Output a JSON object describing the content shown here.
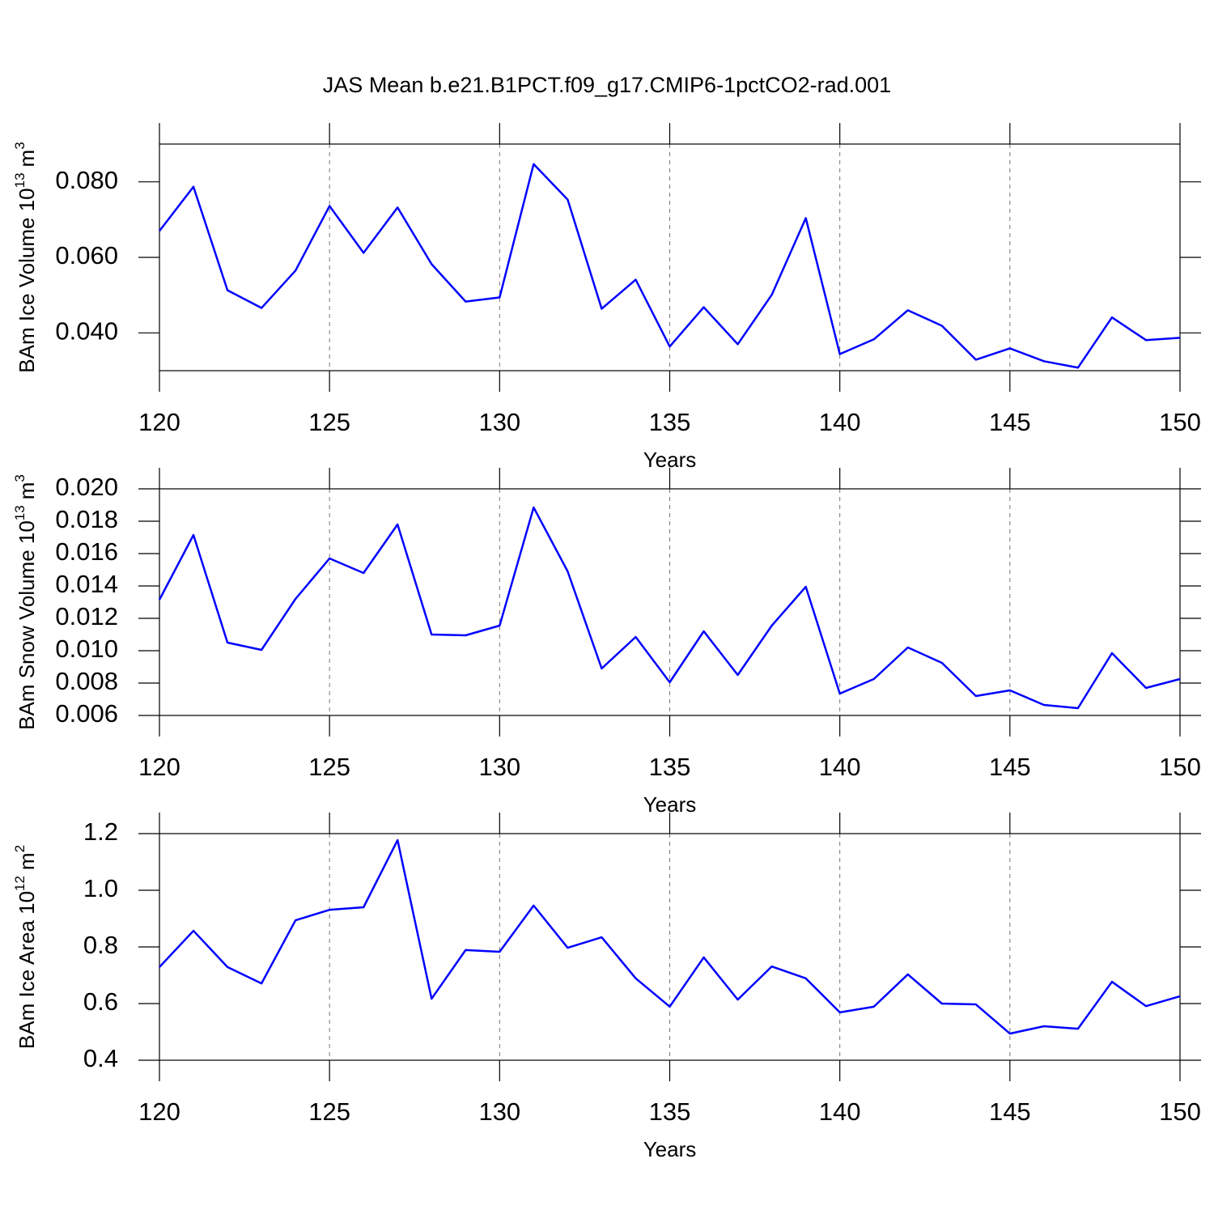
{
  "title": "JAS Mean b.e21.B1PCT.f09_g17.CMIP6-1pctCO2-rad.001",
  "chart_data": [
    {
      "type": "line",
      "xlabel": "Years",
      "ylabel": [
        "BAm Ice Volume 10",
        "13",
        "m",
        "3"
      ],
      "color": "#0000ff",
      "grid": true,
      "x": [
        120,
        121,
        122,
        123,
        124,
        125,
        126,
        127,
        128,
        129,
        130,
        131,
        132,
        133,
        134,
        135,
        136,
        137,
        138,
        139,
        140,
        141,
        142,
        143,
        144,
        145,
        146,
        147,
        148,
        149,
        150
      ],
      "values": [
        0.067,
        0.0787,
        0.0513,
        0.0466,
        0.0565,
        0.0736,
        0.0612,
        0.0732,
        0.0582,
        0.0483,
        0.0494,
        0.0847,
        0.0753,
        0.0464,
        0.0541,
        0.0364,
        0.0468,
        0.037,
        0.0501,
        0.0704,
        0.0344,
        0.0383,
        0.046,
        0.0419,
        0.0329,
        0.0359,
        0.0325,
        0.0308,
        0.0441,
        0.0381,
        0.0387
      ],
      "xlim": [
        120,
        150
      ],
      "xticks": [
        120,
        125,
        130,
        135,
        140,
        145,
        150
      ],
      "ylim": [
        0.03,
        0.09
      ],
      "yticks": [
        {
          "value": 0.04,
          "label": "0.040"
        },
        {
          "value": 0.06,
          "label": "0.060"
        },
        {
          "value": 0.08,
          "label": "0.080"
        }
      ]
    },
    {
      "type": "line",
      "xlabel": "Years",
      "ylabel": [
        "BAm Snow Volume 10",
        "13",
        "m",
        "3"
      ],
      "color": "#0000ff",
      "grid": true,
      "x": [
        120,
        121,
        122,
        123,
        124,
        125,
        126,
        127,
        128,
        129,
        130,
        131,
        132,
        133,
        134,
        135,
        136,
        137,
        138,
        139,
        140,
        141,
        142,
        143,
        144,
        145,
        146,
        147,
        148,
        149,
        150
      ],
      "values": [
        0.01315,
        0.01715,
        0.0105,
        0.01005,
        0.0132,
        0.0157,
        0.0148,
        0.0178,
        0.011,
        0.01095,
        0.01155,
        0.01885,
        0.0149,
        0.0089,
        0.01085,
        0.00805,
        0.0112,
        0.0085,
        0.01155,
        0.01395,
        0.00735,
        0.00825,
        0.0102,
        0.00925,
        0.0072,
        0.00755,
        0.00665,
        0.00645,
        0.00985,
        0.0077,
        0.00825
      ],
      "xlim": [
        120,
        150
      ],
      "xticks": [
        120,
        125,
        130,
        135,
        140,
        145,
        150
      ],
      "ylim": [
        0.006,
        0.02
      ],
      "yticks": [
        {
          "value": 0.006,
          "label": "0.006"
        },
        {
          "value": 0.008,
          "label": "0.008"
        },
        {
          "value": 0.01,
          "label": "0.010"
        },
        {
          "value": 0.012,
          "label": "0.012"
        },
        {
          "value": 0.014,
          "label": "0.014"
        },
        {
          "value": 0.016,
          "label": "0.016"
        },
        {
          "value": 0.018,
          "label": "0.018"
        },
        {
          "value": 0.02,
          "label": "0.020"
        }
      ]
    },
    {
      "type": "line",
      "xlabel": "Years",
      "ylabel": [
        "BAm Ice Area 10",
        "12",
        "m",
        "2"
      ],
      "color": "#0000ff",
      "grid": true,
      "x": [
        120,
        121,
        122,
        123,
        124,
        125,
        126,
        127,
        128,
        129,
        130,
        131,
        132,
        133,
        134,
        135,
        136,
        137,
        138,
        139,
        140,
        141,
        142,
        143,
        144,
        145,
        146,
        147,
        148,
        149,
        150
      ],
      "values": [
        0.729,
        0.857,
        0.729,
        0.671,
        0.894,
        0.931,
        0.94,
        1.177,
        0.617,
        0.789,
        0.783,
        0.946,
        0.797,
        0.834,
        0.689,
        0.589,
        0.763,
        0.614,
        0.731,
        0.689,
        0.569,
        0.589,
        0.703,
        0.6,
        0.597,
        0.494,
        0.52,
        0.511,
        0.677,
        0.591,
        0.626
      ],
      "xlim": [
        120,
        150
      ],
      "xticks": [
        120,
        125,
        130,
        135,
        140,
        145,
        150
      ],
      "ylim": [
        0.4,
        1.2
      ],
      "yticks": [
        0.4,
        0.6,
        0.8,
        {
          "value": 1.0,
          "label": "1.0"
        },
        1.2
      ]
    }
  ]
}
